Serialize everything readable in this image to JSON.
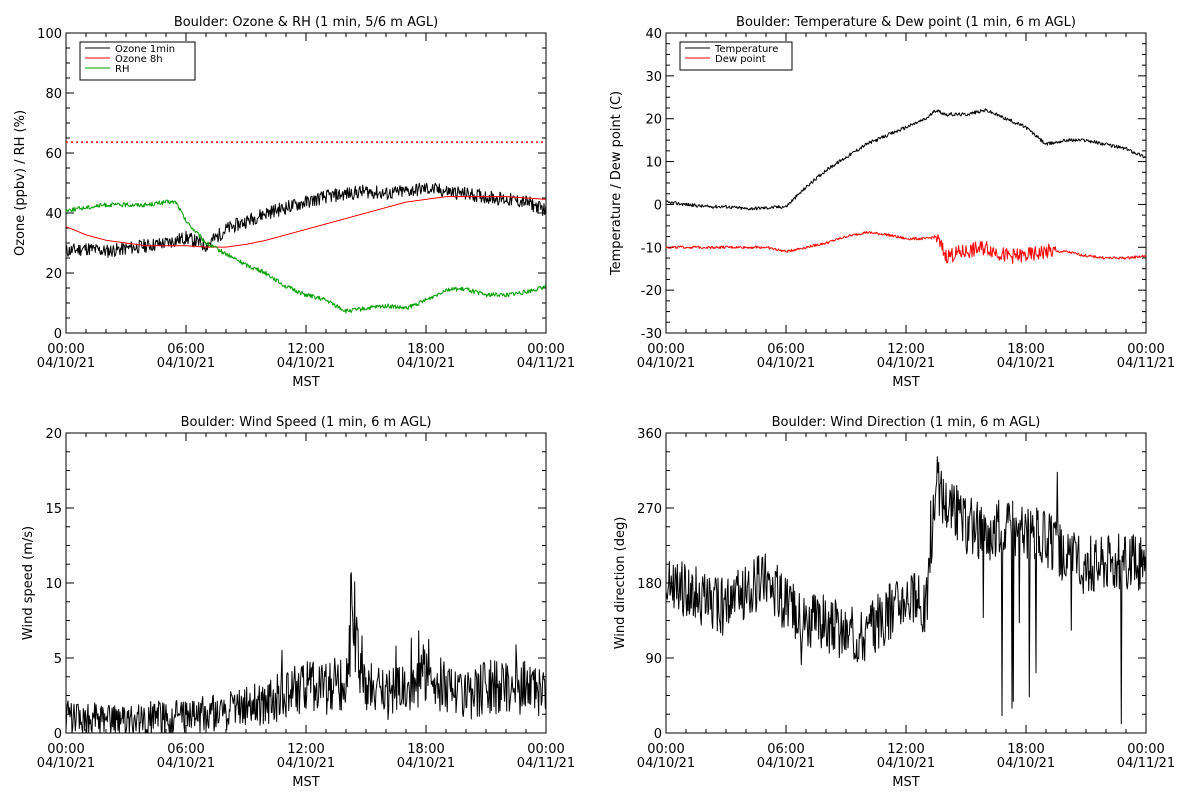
{
  "chart_data": [
    {
      "type": "line",
      "title": "Boulder: Ozone & RH (1 min, 5/6 m AGL)",
      "xlabel": "MST",
      "ylabel": "Ozone (ppbv) / RH (%)",
      "ylim": [
        0,
        110
      ],
      "yticks": [
        "0",
        "20",
        "40",
        "60",
        "80",
        "100"
      ],
      "xticks": [
        [
          "00:00",
          "04/10/21"
        ],
        [
          "06:00",
          "04/10/21"
        ],
        [
          "12:00",
          "04/10/21"
        ],
        [
          "18:00",
          "04/10/21"
        ],
        [
          "00:00",
          "04/11/21"
        ]
      ],
      "legend": "top-left",
      "reference_line": {
        "y": 70,
        "color": "#ff0000",
        "style": "dotted"
      },
      "series": [
        {
          "name": "Ozone 1min",
          "color": "#000000",
          "x": [
            0,
            1,
            2,
            3,
            4,
            5,
            6,
            7,
            8,
            9,
            10,
            11,
            12,
            13,
            14,
            15,
            16,
            17,
            18,
            19,
            20,
            21,
            22,
            23,
            24
          ],
          "y": [
            30,
            31,
            30,
            31,
            32,
            33,
            35,
            32,
            38,
            41,
            44,
            46,
            48,
            50,
            51,
            52,
            51,
            52,
            53,
            52,
            51,
            50,
            49,
            48,
            45
          ]
        },
        {
          "name": "Ozone 8h",
          "color": "#ff0000",
          "x": [
            0,
            1,
            2,
            3,
            4,
            5,
            6,
            7,
            8,
            9,
            10,
            11,
            12,
            13,
            14,
            15,
            16,
            17,
            18,
            19,
            20,
            21,
            22,
            23,
            24
          ],
          "y": [
            39,
            36,
            34,
            33,
            32,
            32,
            32,
            31.5,
            31.5,
            32.5,
            34,
            36,
            38,
            40,
            42,
            44,
            46,
            48,
            49,
            50,
            50,
            50,
            50,
            49.5,
            49
          ]
        },
        {
          "name": "RH",
          "color": "#00a000",
          "x": [
            0,
            1,
            2,
            3,
            4,
            5,
            5.5,
            6,
            7,
            8,
            9,
            10,
            11,
            12,
            13,
            14,
            15,
            16,
            17,
            18,
            19,
            20,
            21,
            22,
            23,
            24
          ],
          "y": [
            45,
            46,
            47,
            47,
            47,
            48,
            48,
            41,
            33,
            29,
            25,
            22,
            17,
            14,
            12,
            8,
            9,
            10,
            9,
            12,
            16,
            16,
            14,
            14,
            15,
            17
          ]
        }
      ]
    },
    {
      "type": "line",
      "title": "Boulder: Temperature & Dew point (1 min, 6 m AGL)",
      "xlabel": "MST",
      "ylabel": "Temperature / Dew point (C)",
      "ylim": [
        -30,
        40
      ],
      "yticks": [
        "-30",
        "-20",
        "-10",
        "0",
        "10",
        "20",
        "30",
        "40"
      ],
      "xticks": [
        [
          "00:00",
          "04/10/21"
        ],
        [
          "06:00",
          "04/10/21"
        ],
        [
          "12:00",
          "04/10/21"
        ],
        [
          "18:00",
          "04/10/21"
        ],
        [
          "00:00",
          "04/11/21"
        ]
      ],
      "legend": "top-left",
      "series": [
        {
          "name": "Temperature",
          "color": "#000000",
          "x": [
            0,
            1,
            2,
            3,
            4,
            5,
            6,
            7,
            8,
            9,
            10,
            11,
            12,
            13,
            13.5,
            14,
            15,
            16,
            17,
            18,
            19,
            20,
            21,
            22,
            23,
            24
          ],
          "y": [
            0.5,
            0,
            -0.5,
            -0.5,
            -1,
            -0.8,
            -0.5,
            4,
            8,
            11,
            14,
            16,
            18,
            20,
            22,
            21,
            21,
            22,
            20,
            18,
            14,
            15,
            15,
            14,
            13,
            11
          ]
        },
        {
          "name": "Dew point",
          "color": "#ff0000",
          "x": [
            0,
            1,
            2,
            3,
            4,
            5,
            6,
            7,
            8,
            9,
            10,
            11,
            12,
            13,
            13.5,
            14,
            15,
            16,
            17,
            18,
            19,
            20,
            21,
            22,
            23,
            24
          ],
          "y": [
            -10,
            -10,
            -10,
            -10,
            -10,
            -10,
            -11,
            -10,
            -9,
            -7.5,
            -6.5,
            -7,
            -8,
            -8,
            -7.5,
            -12,
            -11,
            -10,
            -12,
            -12,
            -11,
            -11,
            -12,
            -12.5,
            -12.5,
            -12
          ]
        }
      ]
    },
    {
      "type": "line",
      "title": "Boulder: Wind Speed (1 min, 6 m AGL)",
      "xlabel": "MST",
      "ylabel": "Wind speed (m/s)",
      "ylim": [
        0,
        20
      ],
      "yticks": [
        "0",
        "5",
        "10",
        "15",
        "20"
      ],
      "xticks": [
        [
          "00:00",
          "04/10/21"
        ],
        [
          "06:00",
          "04/10/21"
        ],
        [
          "12:00",
          "04/10/21"
        ],
        [
          "18:00",
          "04/10/21"
        ],
        [
          "00:00",
          "04/11/21"
        ]
      ],
      "series": [
        {
          "name": "",
          "color": "#000000",
          "x": [
            0,
            1,
            2,
            3,
            4,
            5,
            6,
            7,
            8,
            9,
            10,
            11,
            12,
            13,
            14,
            14.3,
            15,
            16,
            17,
            18,
            19,
            20,
            21,
            22,
            23,
            24
          ],
          "y": [
            1,
            1,
            0.8,
            0.7,
            1,
            1,
            1.1,
            1.3,
            1.5,
            2,
            2,
            2.5,
            3,
            3,
            3.5,
            8.3,
            3,
            2.5,
            3,
            4,
            3,
            2.5,
            3,
            3,
            3,
            2.5
          ]
        }
      ]
    },
    {
      "type": "line",
      "title": "Boulder: Wind Direction (1 min, 6 m AGL)",
      "xlabel": "MST",
      "ylabel": "Wind direction (deg)",
      "ylim": [
        0,
        360
      ],
      "yticks": [
        "0",
        "90",
        "180",
        "270",
        "360"
      ],
      "xticks": [
        [
          "00:00",
          "04/10/21"
        ],
        [
          "06:00",
          "04/10/21"
        ],
        [
          "12:00",
          "04/10/21"
        ],
        [
          "18:00",
          "04/10/21"
        ],
        [
          "00:00",
          "04/11/21"
        ]
      ],
      "series": [
        {
          "name": "",
          "color": "#000000",
          "x": [
            0,
            1,
            2,
            3,
            4,
            5,
            6,
            7,
            8,
            9,
            10,
            11,
            12,
            13,
            13.5,
            14,
            15,
            16,
            17,
            18,
            19,
            20,
            21,
            22,
            23,
            24
          ],
          "y": [
            180,
            170,
            160,
            150,
            170,
            190,
            150,
            140,
            130,
            120,
            120,
            140,
            170,
            150,
            300,
            280,
            250,
            240,
            250,
            240,
            235,
            210,
            200,
            210,
            205,
            200
          ]
        }
      ]
    }
  ]
}
